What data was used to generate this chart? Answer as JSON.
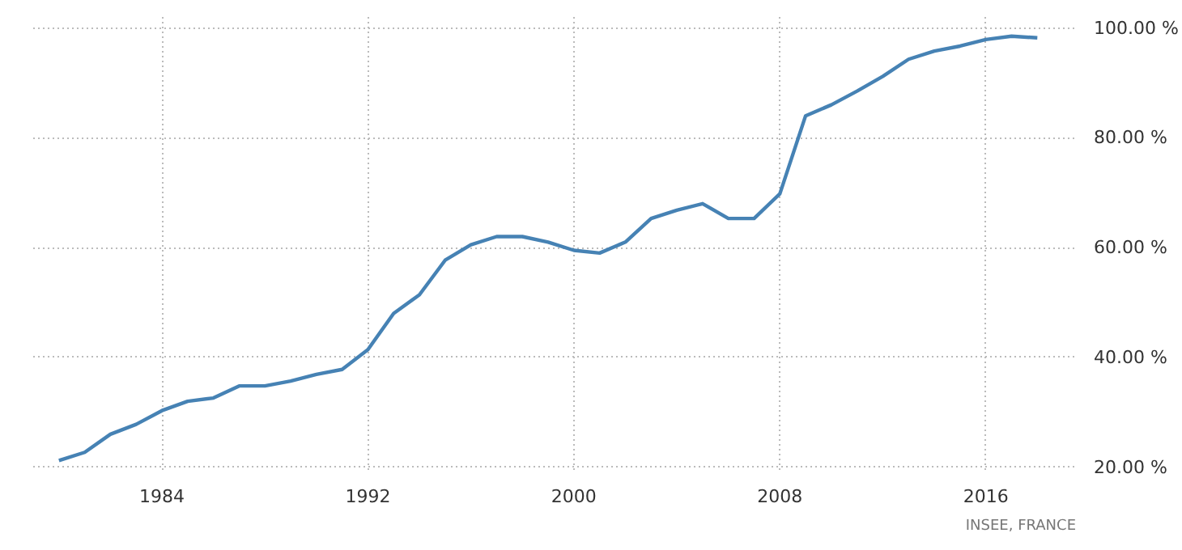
{
  "chart_data": {
    "type": "line",
    "x": [
      1980,
      1981,
      1982,
      1983,
      1984,
      1985,
      1986,
      1987,
      1988,
      1989,
      1990,
      1991,
      1992,
      1993,
      1994,
      1995,
      1996,
      1997,
      1998,
      1999,
      2000,
      2001,
      2002,
      2003,
      2004,
      2005,
      2006,
      2007,
      2008,
      2009,
      2010,
      2011,
      2012,
      2013,
      2014,
      2015,
      2016,
      2017,
      2018
    ],
    "series": [
      {
        "color": "#4682b4",
        "values": [
          21.2,
          22.7,
          26,
          27.8,
          30.3,
          32,
          32.6,
          34.8,
          34.8,
          35.7,
          36.9,
          37.8,
          41.4,
          48,
          51.4,
          57.7,
          60.5,
          62,
          62,
          61,
          59.5,
          59,
          61,
          65.3,
          66.8,
          68,
          65.3,
          65.3,
          69.8,
          84,
          86,
          88.5,
          91.2,
          94.3,
          95.8,
          96.7,
          97.9,
          98.5,
          98.2
        ]
      }
    ],
    "xlim": [
      1979,
      2019.5
    ],
    "ylim": [
      19.5,
      102
    ],
    "xticks": [
      1984,
      1992,
      2000,
      2008,
      2016
    ],
    "yticks": [
      {
        "value": 20,
        "label": "20.00 %"
      },
      {
        "value": 40,
        "label": "40.00 %"
      },
      {
        "value": 60,
        "label": "60.00 %"
      },
      {
        "value": 80,
        "label": "80.00 %"
      },
      {
        "value": 100,
        "label": "100.00 %"
      }
    ],
    "grid": true,
    "line_style": "solid",
    "marker": "none",
    "annotations": [
      "INSEE, FRANCE"
    ]
  }
}
